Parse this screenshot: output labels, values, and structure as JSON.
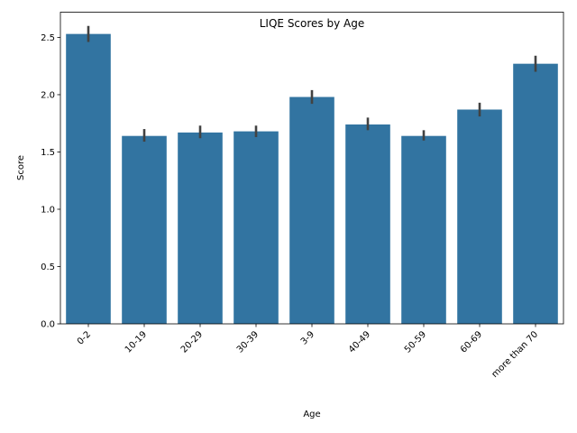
{
  "chart_data": {
    "type": "bar",
    "title": "LIQE Scores by Age",
    "xlabel": "Age",
    "ylabel": "Score",
    "categories": [
      "0-2",
      "10-19",
      "20-29",
      "30-39",
      "3-9",
      "40-49",
      "50-59",
      "60-69",
      "more than 70"
    ],
    "values": [
      2.53,
      1.64,
      1.67,
      1.68,
      1.98,
      1.74,
      1.64,
      1.87,
      2.27
    ],
    "error_low": [
      2.46,
      1.59,
      1.62,
      1.63,
      1.92,
      1.69,
      1.6,
      1.81,
      2.2
    ],
    "error_high": [
      2.6,
      1.7,
      1.73,
      1.73,
      2.04,
      1.8,
      1.69,
      1.93,
      2.34
    ],
    "ylim": [
      0,
      2.72
    ],
    "yticks": [
      "0.0",
      "0.5",
      "1.0",
      "1.5",
      "2.0",
      "2.5"
    ],
    "grid": false,
    "bar_color": "#3274a1",
    "error_color": "#424242"
  }
}
